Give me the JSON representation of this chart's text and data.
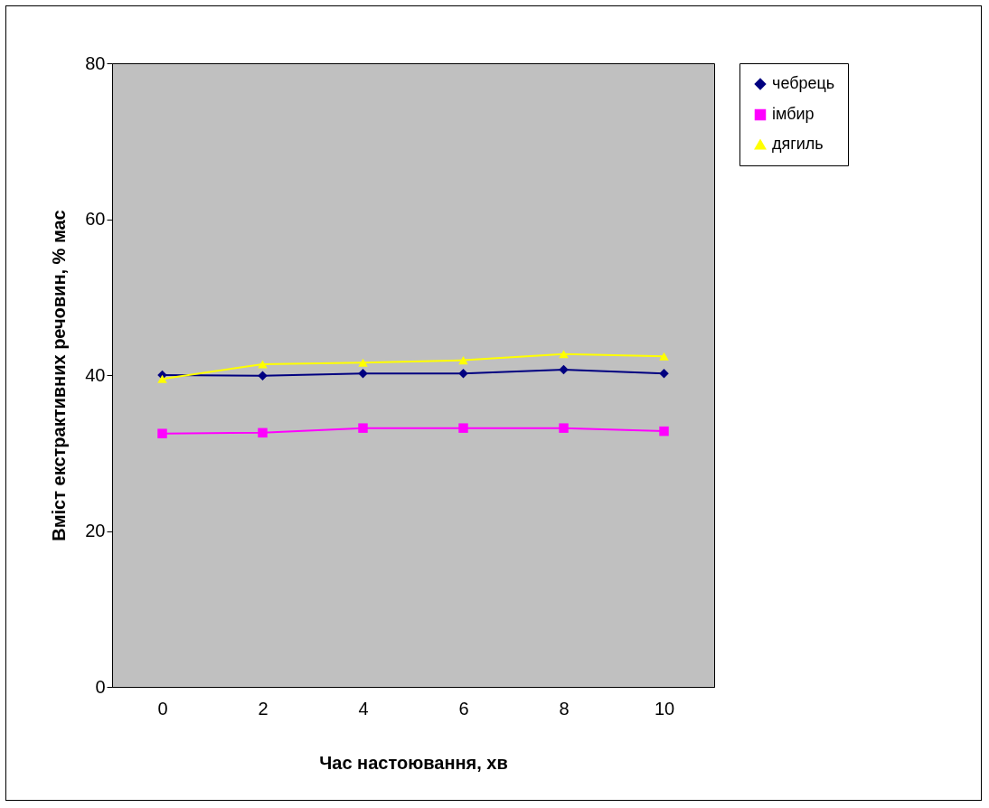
{
  "chart_data": {
    "type": "line",
    "xlabel": "Час настоювання, хв",
    "ylabel": "Вміст  екстрактивних речовин, % мас",
    "categories": [
      "0",
      "2",
      "4",
      "6",
      "8",
      "10"
    ],
    "ylim": [
      0,
      80
    ],
    "yticks": [
      0,
      20,
      40,
      60,
      80
    ],
    "grid": false,
    "legend": "right",
    "series": [
      {
        "name": "чебрець",
        "color": "#000080",
        "marker": "diamond",
        "values": [
          40,
          39.9,
          40.2,
          40.2,
          40.7,
          40.2
        ]
      },
      {
        "name": "імбир",
        "color": "#ff00ff",
        "marker": "square",
        "values": [
          32.5,
          32.6,
          33.2,
          33.2,
          33.2,
          32.8
        ]
      },
      {
        "name": "дягиль",
        "color": "#ffff00",
        "marker": "triangle",
        "values": [
          39.5,
          41.4,
          41.6,
          41.9,
          42.7,
          42.4
        ]
      }
    ]
  }
}
